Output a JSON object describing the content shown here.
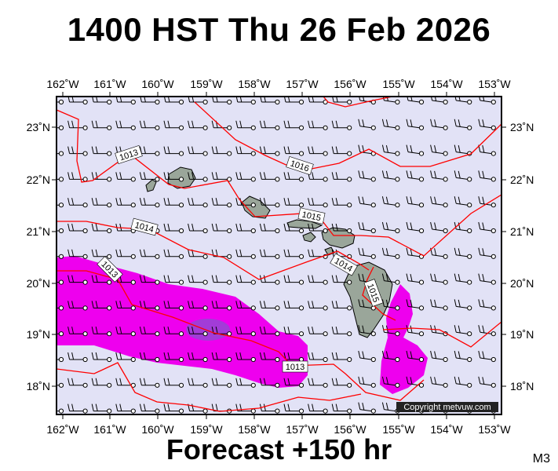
{
  "title": "1400 HST Thu 26 Feb 2026",
  "forecast": "Forecast +150 hr",
  "model_code": "M3",
  "copyright": "Copyright metvuw.com",
  "map": {
    "lon_labels": [
      "162˚W",
      "161˚W",
      "160˚W",
      "159˚W",
      "158˚W",
      "157˚W",
      "156˚W",
      "155˚W",
      "154˚W",
      "153˚W"
    ],
    "lat_labels": [
      "23˚N",
      "22˚N",
      "21˚N",
      "20˚N",
      "19˚N",
      "18˚N"
    ],
    "isobar_labels": [
      "1013",
      "1016",
      "1014",
      "1015",
      "1013",
      "1014",
      "1015",
      "1013"
    ],
    "colors": {
      "background": "#e2e2f6",
      "precip_heavy": "#ee00ee",
      "precip_core": "#a23cd8",
      "isobar": "#ff0000",
      "land": "#9aa69a"
    }
  }
}
